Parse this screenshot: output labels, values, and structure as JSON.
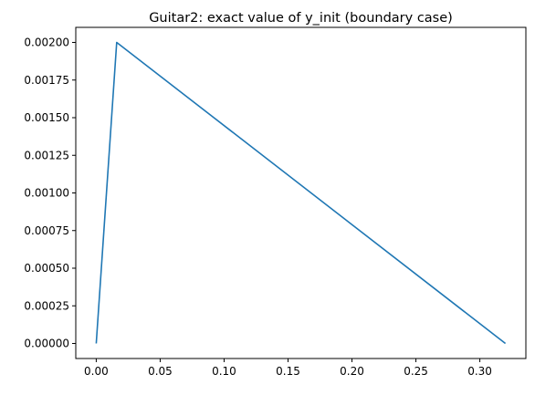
{
  "chart_data": {
    "type": "line",
    "title": "Guitar2: exact value of y_init (boundary case)",
    "xlabel": "",
    "ylabel": "",
    "xlim": [
      -0.016,
      0.336
    ],
    "ylim": [
      -0.0001,
      0.0021
    ],
    "x_ticks": [
      {
        "value": 0.0,
        "label": "0.00"
      },
      {
        "value": 0.05,
        "label": "0.05"
      },
      {
        "value": 0.1,
        "label": "0.10"
      },
      {
        "value": 0.15,
        "label": "0.15"
      },
      {
        "value": 0.2,
        "label": "0.20"
      },
      {
        "value": 0.25,
        "label": "0.25"
      },
      {
        "value": 0.3,
        "label": "0.30"
      }
    ],
    "y_ticks": [
      {
        "value": 0.0,
        "label": "0.00000"
      },
      {
        "value": 0.00025,
        "label": "0.00025"
      },
      {
        "value": 0.0005,
        "label": "0.00050"
      },
      {
        "value": 0.00075,
        "label": "0.00075"
      },
      {
        "value": 0.001,
        "label": "0.00100"
      },
      {
        "value": 0.00125,
        "label": "0.00125"
      },
      {
        "value": 0.0015,
        "label": "0.00150"
      },
      {
        "value": 0.00175,
        "label": "0.00175"
      },
      {
        "value": 0.002,
        "label": "0.00200"
      }
    ],
    "grid": false,
    "legend": "none",
    "series": [
      {
        "color": "#1f77b4",
        "x": [
          0.0,
          0.016,
          0.32
        ],
        "y": [
          0.0,
          0.002,
          0.0
        ]
      }
    ]
  }
}
